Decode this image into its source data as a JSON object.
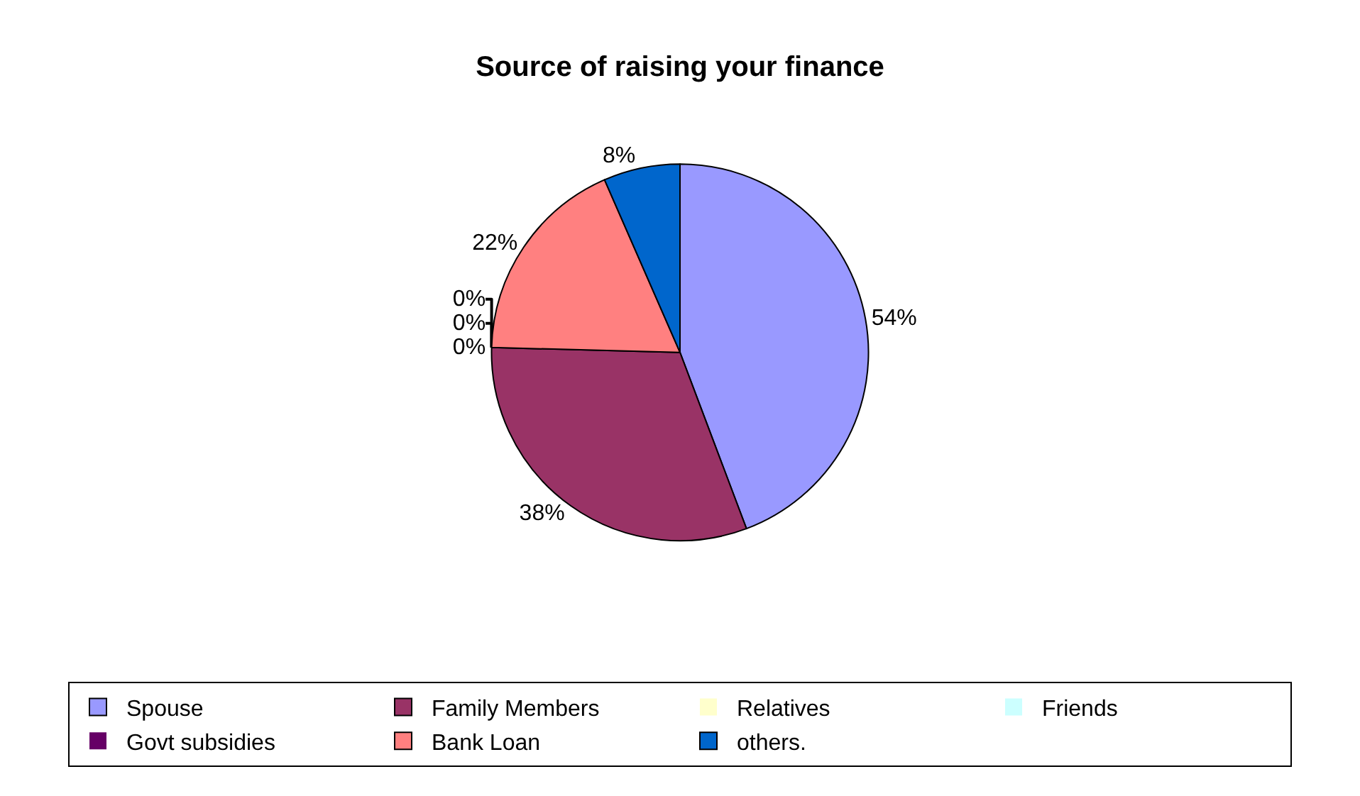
{
  "chart_data": {
    "type": "pie",
    "title": "Source of raising your finance",
    "categories": [
      "Spouse",
      "Family Members",
      "Relatives",
      "Friends",
      "Govt subsidies",
      "Bank Loan",
      "others."
    ],
    "values": [
      54,
      38,
      0,
      0,
      0,
      22,
      8
    ],
    "colors": [
      "#9999ff",
      "#993366",
      "#ffffcc",
      "#ccffff",
      "#660066",
      "#ff8080",
      "#0066cc"
    ],
    "value_labels": [
      "54%",
      "38%",
      "0%",
      "0%",
      "0%",
      "22%",
      "8%"
    ],
    "legend": "bottom"
  }
}
